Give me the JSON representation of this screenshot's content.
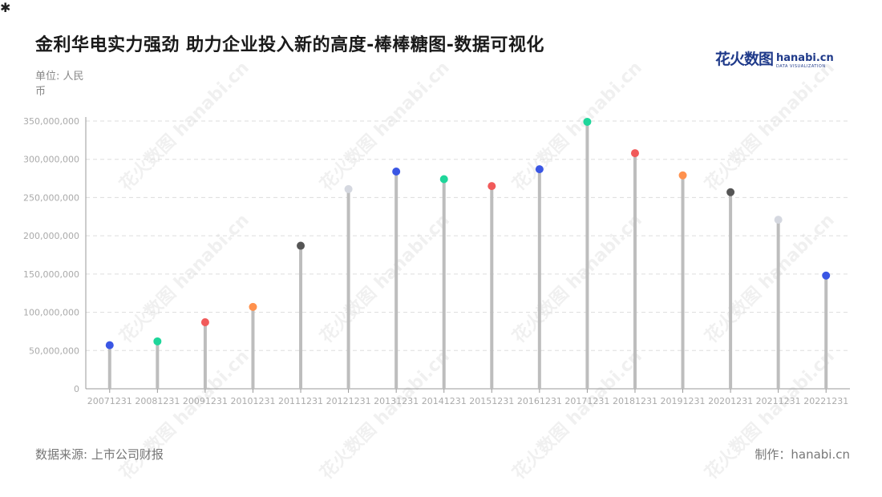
{
  "title": "金利华电实力强劲 助力企业投入新的高度-棒棒糖图-数据可视化",
  "unit_label": "单位: 人民币",
  "logo": {
    "cn": "花火数图",
    "en": "hanabi.cn",
    "tagline": "DATA VISUALIZATION"
  },
  "watermark_text": "花火数图 hanabi.cn",
  "source": "数据来源: 上市公司财报",
  "credit": "制作：hanabi.cn",
  "colors": {
    "stem": "#bdbdbd",
    "grid": "#dddddd",
    "axis": "#999999",
    "tick_text": "#aaaaaa"
  },
  "chart_data": {
    "type": "lollipop",
    "title": "金利华电实力强劲 助力企业投入新的高度-棒棒糖图-数据可视化",
    "ylabel": "单位: 人民币",
    "ylim": [
      0,
      350000000
    ],
    "yticks": [
      0,
      50000000,
      100000000,
      150000000,
      200000000,
      250000000,
      300000000,
      350000000
    ],
    "ytick_labels": [
      "0",
      "50,000,000",
      "100,000,000",
      "150,000,000",
      "200,000,000",
      "250,000,000",
      "300,000,000",
      "350,000,000"
    ],
    "grid": true,
    "categories": [
      "20071231",
      "20081231",
      "20091231",
      "20101231",
      "20111231",
      "20121231",
      "20131231",
      "20141231",
      "20151231",
      "20161231",
      "20171231",
      "20181231",
      "20191231",
      "20201231",
      "20211231",
      "20221231"
    ],
    "values": [
      57000000,
      62000000,
      87000000,
      107000000,
      187000000,
      261000000,
      284000000,
      274000000,
      265000000,
      287000000,
      349000000,
      308000000,
      279000000,
      257000000,
      221000000,
      148000000
    ],
    "point_colors": [
      "#3a56e4",
      "#1ed69a",
      "#f15a5a",
      "#ff914d",
      "#555555",
      "#d5d8e0",
      "#3a56e4",
      "#1ed69a",
      "#f15a5a",
      "#3a56e4",
      "#1ed69a",
      "#f15a5a",
      "#ff914d",
      "#555555",
      "#d5d8e0",
      "#3a56e4"
    ]
  }
}
